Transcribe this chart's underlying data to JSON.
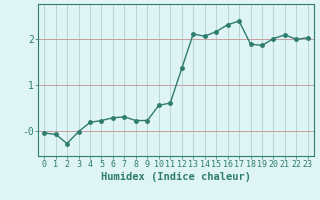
{
  "x": [
    0,
    1,
    2,
    3,
    4,
    5,
    6,
    7,
    8,
    9,
    10,
    11,
    12,
    13,
    14,
    15,
    16,
    17,
    18,
    19,
    20,
    21,
    22,
    23
  ],
  "y": [
    -0.05,
    -0.08,
    -0.28,
    -0.02,
    0.18,
    0.22,
    0.28,
    0.3,
    0.22,
    0.22,
    0.55,
    0.6,
    1.35,
    2.1,
    2.05,
    2.15,
    2.3,
    2.38,
    1.88,
    1.85,
    2.0,
    2.08,
    1.98,
    2.02
  ],
  "line_color": "#2e7d6e",
  "marker": "o",
  "markersize": 2.5,
  "linewidth": 1.0,
  "bg_color": "#dff4f4",
  "grid_color_h": "#c4a4a4",
  "grid_color_v": "#b8d8d8",
  "xlabel": "Humidex (Indice chaleur)",
  "xlabel_fontsize": 7.5,
  "yticks": [
    0,
    1,
    2
  ],
  "ytick_labels": [
    "-0",
    "1",
    "2"
  ],
  "xtick_labels": [
    "0",
    "1",
    "2",
    "3",
    "4",
    "5",
    "6",
    "7",
    "8",
    "9",
    "10",
    "11",
    "12",
    "13",
    "14",
    "15",
    "16",
    "17",
    "18",
    "19",
    "20",
    "21",
    "22",
    "23"
  ],
  "xlim": [
    -0.5,
    23.5
  ],
  "ylim": [
    -0.55,
    2.75
  ],
  "tick_fontsize": 6,
  "axis_color": "#2e7d6e"
}
